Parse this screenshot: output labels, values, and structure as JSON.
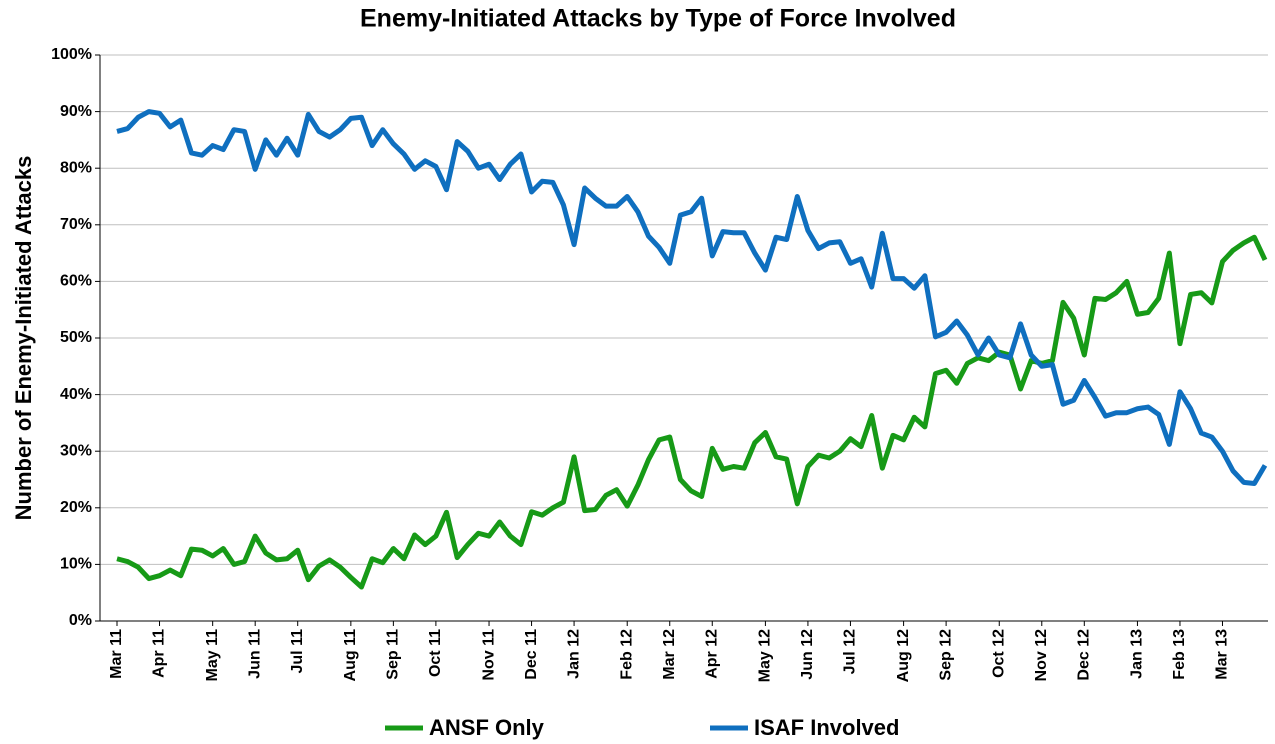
{
  "chart_data": {
    "type": "line",
    "title": "Enemy-Initiated Attacks by Type of Force Involved",
    "y_label": "Number of Enemy-Initiated Attacks",
    "categories": [
      "Mar 11",
      null,
      null,
      null,
      "Apr 11",
      null,
      null,
      null,
      null,
      "May 11",
      null,
      null,
      null,
      "Jun 11",
      null,
      null,
      null,
      "Jul 11",
      null,
      null,
      null,
      null,
      "Aug 11",
      null,
      null,
      null,
      "Sep 11",
      null,
      null,
      null,
      "Oct 11",
      null,
      null,
      null,
      null,
      "Nov 11",
      null,
      null,
      null,
      "Dec 11",
      null,
      null,
      null,
      "Jan 12",
      null,
      null,
      null,
      null,
      "Feb 12",
      null,
      null,
      null,
      "Mar 12",
      null,
      null,
      null,
      "Apr 12",
      null,
      null,
      null,
      null,
      "May 12",
      null,
      null,
      null,
      "Jun 12",
      null,
      null,
      null,
      "Jul 12",
      null,
      null,
      null,
      null,
      "Aug 12",
      null,
      null,
      null,
      "Sep 12",
      null,
      null,
      null,
      null,
      "Oct 12",
      null,
      null,
      null,
      "Nov 12",
      null,
      null,
      null,
      "Dec 12",
      null,
      null,
      null,
      null,
      "Jan 13",
      null,
      null,
      null,
      "Feb 13",
      null,
      null,
      null,
      "Mar 13",
      null,
      null,
      null,
      null
    ],
    "series": [
      {
        "name": "ANSF Only",
        "color": "#179a17",
        "values": [
          11,
          10.5,
          9.5,
          7.5,
          8,
          9,
          8,
          12.7,
          12.5,
          11.5,
          12.8,
          10,
          10.5,
          15,
          12,
          10.8,
          11,
          12.5,
          7.3,
          9.7,
          10.8,
          9.5,
          7.7,
          6,
          11,
          10.3,
          12.8,
          11,
          15.2,
          13.5,
          15,
          19.2,
          11.2,
          13.5,
          15.5,
          15,
          17.5,
          15,
          13.5,
          19.3,
          18.7,
          20,
          21,
          29,
          19.5,
          19.7,
          22.2,
          23.2,
          20.3,
          24,
          28.5,
          32,
          32.5,
          25,
          23,
          22,
          30.5,
          26.8,
          27.3,
          27,
          31.5,
          33.3,
          29,
          28.6,
          20.7,
          27.3,
          29.3,
          28.8,
          30,
          32.2,
          30.8,
          36.3,
          27,
          32.8,
          32,
          36,
          34.3,
          43.7,
          44.3,
          42,
          45.5,
          46.5,
          46,
          47.5,
          47,
          41,
          46,
          45.5,
          46,
          56.3,
          53.5,
          47,
          57,
          56.8,
          58,
          60,
          54.2,
          54.5,
          57,
          65,
          49,
          57.7,
          58,
          56.2,
          63.5,
          65.5,
          66.8,
          67.8,
          63.8
        ]
      },
      {
        "name": "ISAF Involved",
        "color": "#0f6fbf",
        "values": [
          86.5,
          87,
          89,
          90,
          89.7,
          87.3,
          88.5,
          82.7,
          82.3,
          84,
          83.3,
          86.8,
          86.5,
          79.8,
          85,
          82.3,
          85.3,
          82.3,
          89.5,
          86.5,
          85.5,
          86.8,
          88.8,
          89,
          84,
          86.8,
          84.3,
          82.5,
          79.8,
          81.3,
          80.3,
          76.2,
          84.7,
          83,
          80,
          80.7,
          78,
          80.7,
          82.5,
          75.8,
          77.7,
          77.5,
          73.5,
          66.5,
          76.5,
          74.7,
          73.3,
          73.3,
          75,
          72.3,
          68,
          66,
          63.2,
          71.7,
          72.3,
          74.7,
          64.5,
          68.8,
          68.6,
          68.6,
          65,
          62,
          67.8,
          67.4,
          75,
          69,
          65.8,
          66.8,
          67,
          63.2,
          64,
          59,
          68.5,
          60.5,
          60.5,
          58.8,
          61,
          50.2,
          51,
          53,
          50.5,
          47,
          50,
          47,
          46.5,
          52.5,
          47,
          45,
          45.3,
          38.3,
          39,
          42.5,
          39.5,
          36.2,
          36.8,
          36.8,
          37.5,
          37.8,
          36.5,
          31.2,
          40.5,
          37.5,
          33.2,
          32.5,
          30,
          26.5,
          24.5,
          24.3,
          27.5
        ]
      }
    ],
    "ylim": [
      0,
      100
    ],
    "yticks": [
      {
        "value": 0,
        "label": "0%"
      },
      {
        "value": 10,
        "label": "10%"
      },
      {
        "value": 20,
        "label": "20%"
      },
      {
        "value": 30,
        "label": "30%"
      },
      {
        "value": 40,
        "label": "40%"
      },
      {
        "value": 50,
        "label": "50%"
      },
      {
        "value": 60,
        "label": "60%"
      },
      {
        "value": 70,
        "label": "70%"
      },
      {
        "value": 80,
        "label": "80%"
      },
      {
        "value": 90,
        "label": "90%"
      },
      {
        "value": 100,
        "label": "100%"
      }
    ],
    "grid": true,
    "legend": "bottom"
  }
}
